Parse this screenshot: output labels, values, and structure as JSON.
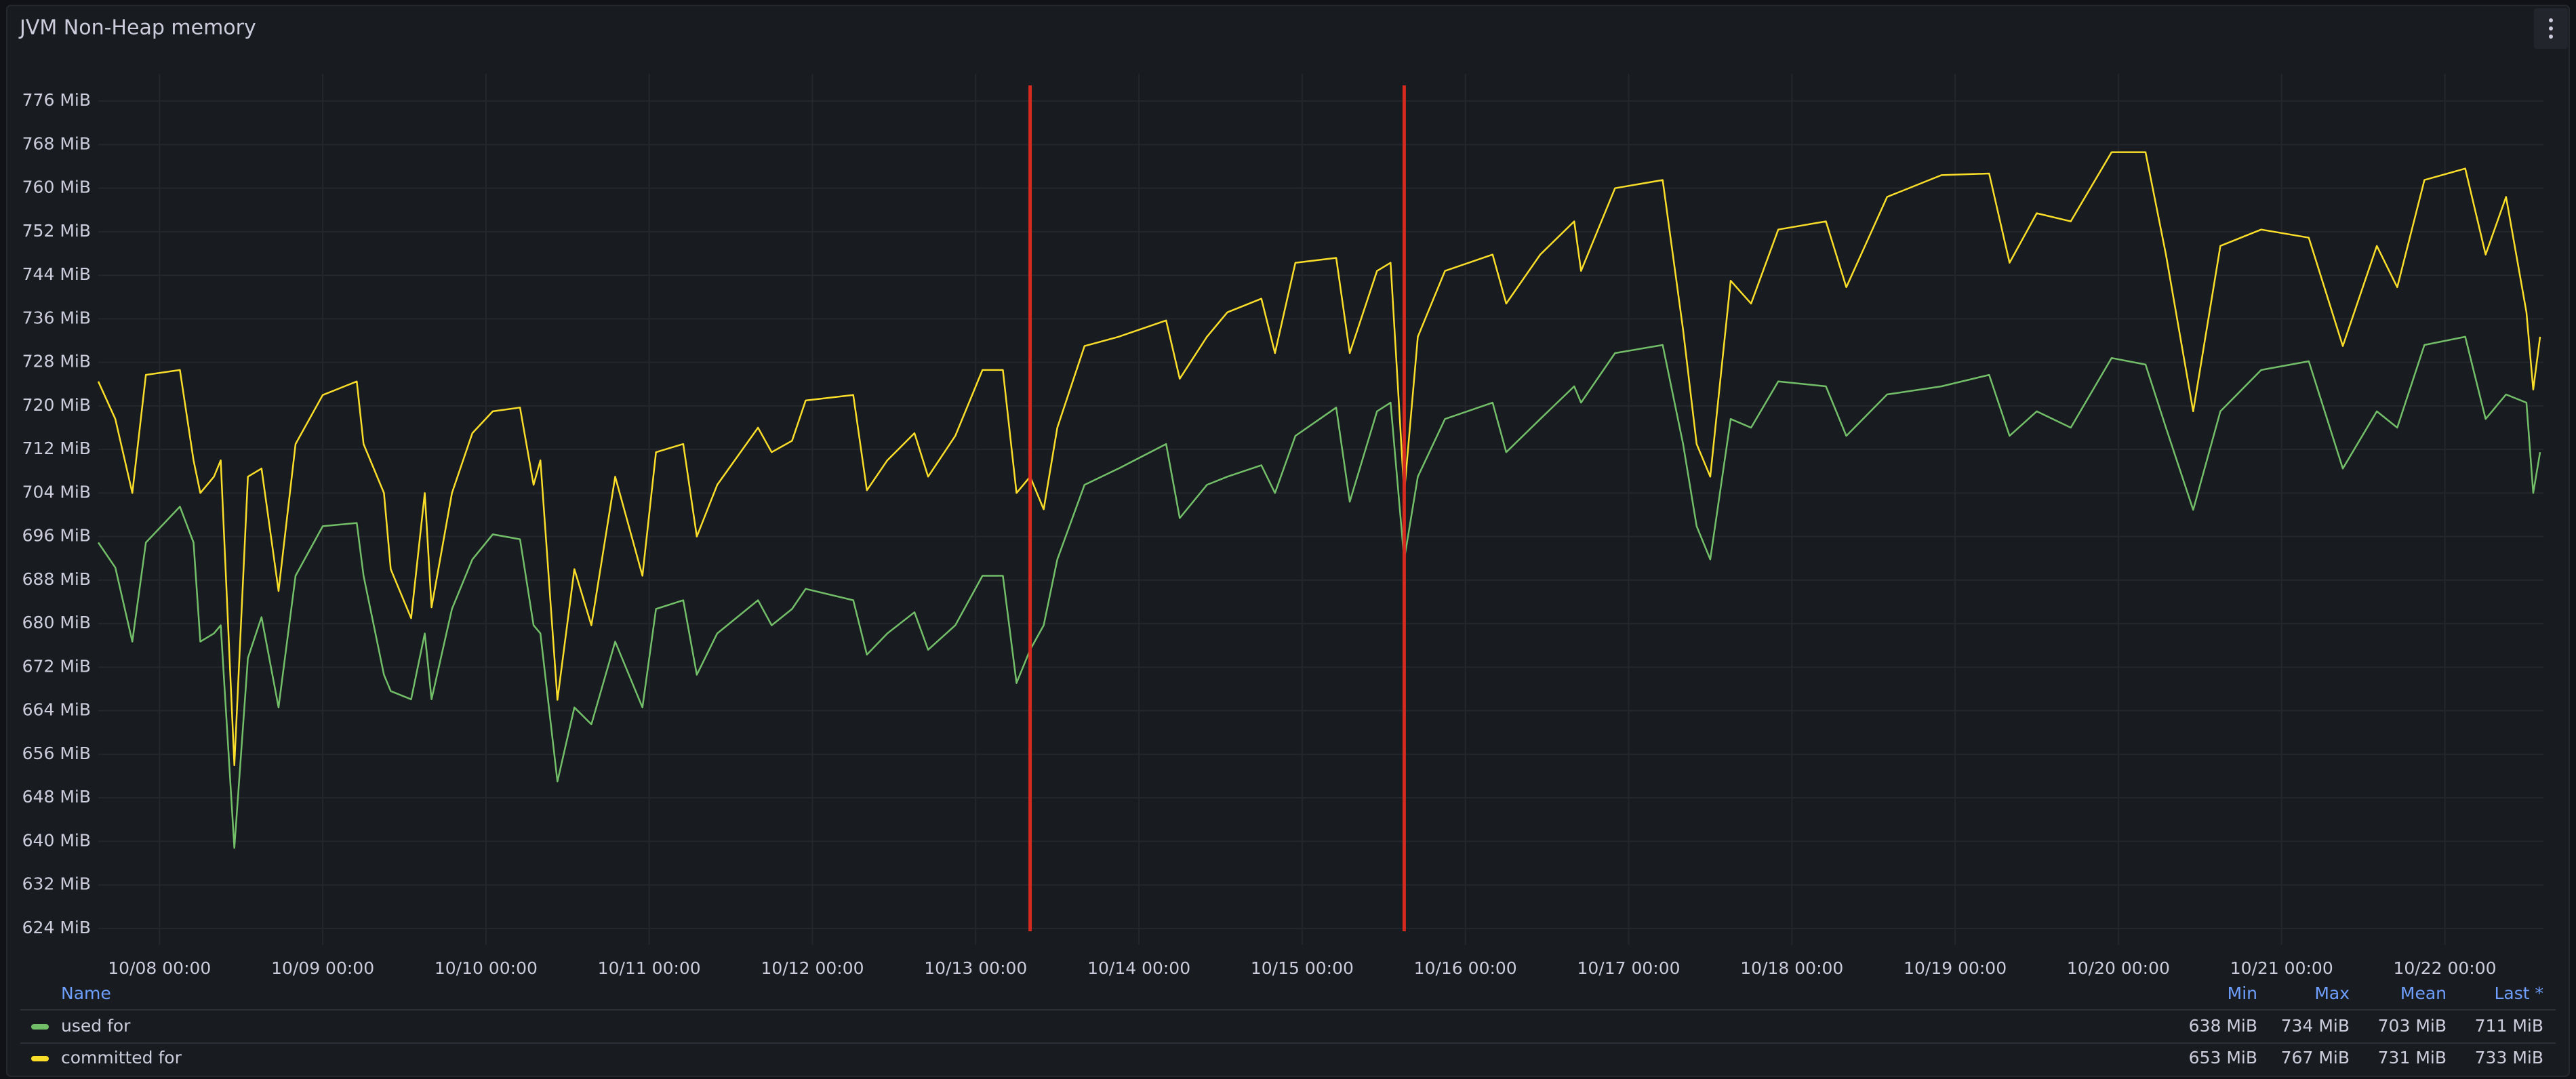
{
  "chart_data": {
    "type": "line",
    "title": "JVM Non-Heap memory",
    "x": [
      "10/07 15:00",
      "10/07 17:30",
      "10/07 20:00",
      "10/07 22:00",
      "10/08 03:00",
      "10/08 05:00",
      "10/08 06:00",
      "10/08 08:00",
      "10/08 09:00",
      "10/08 11:00",
      "10/08 13:00",
      "10/08 15:00",
      "10/08 17:30",
      "10/08 20:00",
      "10/09 00:00",
      "10/09 05:00",
      "10/09 06:00",
      "10/09 09:00",
      "10/09 10:00",
      "10/09 13:00",
      "10/09 15:00",
      "10/09 16:00",
      "10/09 19:00",
      "10/09 22:00",
      "10/10 01:00",
      "10/10 05:00",
      "10/10 07:00",
      "10/10 08:00",
      "10/10 10:30",
      "10/10 13:00",
      "10/10 15:30",
      "10/10 19:00",
      "10/10 23:00",
      "10/11 01:00",
      "10/11 05:00",
      "10/11 07:00",
      "10/11 10:00",
      "10/11 16:00",
      "10/11 18:00",
      "10/11 21:00",
      "10/11 23:00",
      "10/12 06:00",
      "10/12 08:00",
      "10/12 11:00",
      "10/12 15:00",
      "10/12 17:00",
      "10/12 21:00",
      "10/13 01:00",
      "10/13 04:00",
      "10/13 06:00",
      "10/13 08:00",
      "10/13 10:00",
      "10/13 12:00",
      "10/13 16:00",
      "10/13 21:00",
      "10/14 04:00",
      "10/14 06:00",
      "10/14 10:00",
      "10/14 13:00",
      "10/14 18:00",
      "10/14 20:00",
      "10/14 23:00",
      "10/15 05:00",
      "10/15 07:00",
      "10/15 11:00",
      "10/15 13:00",
      "10/15 15:00",
      "10/15 17:00",
      "10/15 21:00",
      "10/16 04:00",
      "10/16 06:00",
      "10/16 11:00",
      "10/16 16:00",
      "10/16 17:00",
      "10/16 22:00",
      "10/17 05:00",
      "10/17 08:00",
      "10/17 10:00",
      "10/17 12:00",
      "10/17 15:00",
      "10/17 18:00",
      "10/17 22:00",
      "10/18 05:00",
      "10/18 08:00",
      "10/18 14:00",
      "10/18 22:00",
      "10/19 05:00",
      "10/19 08:00",
      "10/19 12:00",
      "10/19 17:00",
      "10/19 23:00",
      "10/20 04:00",
      "10/20 07:00",
      "10/20 11:00",
      "10/20 15:00",
      "10/20 21:00",
      "10/21 04:00",
      "10/21 09:00",
      "10/21 14:00",
      "10/21 17:00",
      "10/21 21:00",
      "10/22 03:00",
      "10/22 06:00",
      "10/22 09:00",
      "10/22 12:00",
      "10/22 13:00",
      "10/22 14:00"
    ],
    "series": [
      {
        "name": "used for",
        "color": "#73bf69",
        "stats": [
          "638 MiB",
          "734 MiB",
          "703 MiB",
          "711 MiB"
        ],
        "values": [
          694.9,
          690.3,
          676.7,
          694.9,
          701.5,
          694.9,
          676.7,
          678.2,
          679.7,
          638.8,
          673.7,
          681.2,
          664.6,
          688.8,
          697.9,
          698.5,
          688.8,
          670.6,
          667.6,
          666.1,
          678.2,
          666.1,
          682.7,
          691.8,
          696.4,
          695.5,
          679.7,
          678.2,
          651,
          664.6,
          661.5,
          676.7,
          664.6,
          682.7,
          684.3,
          670.6,
          678.2,
          684.3,
          679.7,
          682.7,
          686.4,
          684.3,
          674.3,
          678.2,
          682.1,
          675.2,
          679.7,
          688.8,
          688.8,
          669.1,
          675.2,
          679.7,
          691.8,
          705.5,
          708.5,
          713,
          699.4,
          705.5,
          707,
          709.1,
          704,
          714.5,
          719.7,
          702.4,
          719,
          720.6,
          691.8,
          707,
          717.6,
          720.6,
          711.5,
          717.6,
          723.6,
          720.6,
          729.7,
          731.2,
          713,
          697.9,
          691.8,
          717.6,
          716,
          724.5,
          723.6,
          714.5,
          722.1,
          723.6,
          725.7,
          714.5,
          719,
          716,
          728.8,
          727.6,
          716,
          700.9,
          719,
          726.6,
          728.2,
          708.5,
          719,
          716,
          731.2,
          732.7,
          717.6,
          722.1,
          720.6,
          704,
          711.5
        ]
      },
      {
        "name": "committed for",
        "color": "#fade2a",
        "stats": [
          "653 MiB",
          "767 MiB",
          "731 MiB",
          "733 MiB"
        ],
        "values": [
          724.5,
          717.6,
          704,
          725.7,
          726.6,
          710,
          704,
          707,
          710,
          654,
          707,
          708.5,
          686,
          713,
          722,
          724.5,
          713,
          704,
          690,
          681,
          704,
          683,
          704,
          715,
          719,
          719.7,
          705.5,
          710,
          666,
          690,
          679.7,
          707,
          688.8,
          711.5,
          713,
          696,
          705.5,
          716,
          711.5,
          713.6,
          721,
          722,
          704.5,
          710,
          715,
          707,
          714.5,
          726.6,
          726.6,
          704,
          707,
          701,
          716,
          731,
          732.7,
          735.7,
          725,
          732.7,
          737.2,
          739.7,
          729.7,
          746.3,
          747.2,
          729.7,
          744.8,
          746.3,
          704,
          732.7,
          744.8,
          747.8,
          738.8,
          747.8,
          753.9,
          744.8,
          760,
          761.5,
          734,
          713,
          707,
          743,
          738.8,
          752.4,
          753.9,
          741.8,
          758.4,
          762.4,
          762.7,
          746.3,
          755.4,
          753.9,
          766.6,
          766.6,
          747.8,
          719,
          749.4,
          752.4,
          750.9,
          731,
          749.4,
          741.8,
          761.5,
          763.6,
          747.8,
          758.4,
          737.2,
          723,
          732.7
        ]
      }
    ],
    "xlim": [
      "10/07 15:00",
      "10/22 14:30"
    ],
    "xticks": [
      "10/08 00:00",
      "10/09 00:00",
      "10/10 00:00",
      "10/11 00:00",
      "10/12 00:00",
      "10/13 00:00",
      "10/14 00:00",
      "10/15 00:00",
      "10/16 00:00",
      "10/17 00:00",
      "10/18 00:00",
      "10/19 00:00",
      "10/20 00:00",
      "10/21 00:00",
      "10/22 00:00"
    ],
    "ylim": [
      621,
      781
    ],
    "yticks": [
      {
        "value": 624,
        "label": "624 MiB"
      },
      {
        "value": 632,
        "label": "632 MiB"
      },
      {
        "value": 640,
        "label": "640 MiB"
      },
      {
        "value": 648,
        "label": "648 MiB"
      },
      {
        "value": 656,
        "label": "656 MiB"
      },
      {
        "value": 664,
        "label": "664 MiB"
      },
      {
        "value": 672,
        "label": "672 MiB"
      },
      {
        "value": 680,
        "label": "680 MiB"
      },
      {
        "value": 688,
        "label": "688 MiB"
      },
      {
        "value": 696,
        "label": "696 MiB"
      },
      {
        "value": 704,
        "label": "704 MiB"
      },
      {
        "value": 712,
        "label": "712 MiB"
      },
      {
        "value": 720,
        "label": "720 MiB"
      },
      {
        "value": 728,
        "label": "728 MiB"
      },
      {
        "value": 736,
        "label": "736 MiB"
      },
      {
        "value": 744,
        "label": "744 MiB"
      },
      {
        "value": 752,
        "label": "752 MiB"
      },
      {
        "value": 760,
        "label": "760 MiB"
      },
      {
        "value": 768,
        "label": "768 MiB"
      },
      {
        "value": 776,
        "label": "776 MiB"
      }
    ],
    "grid": true,
    "annotations": [
      {
        "x": "10/13 08:00",
        "color": "#d42a1f"
      },
      {
        "x": "10/15 15:00",
        "color": "#d42a1f"
      }
    ],
    "legend_columns": [
      "Name",
      "Min",
      "Max",
      "Mean",
      "Last *"
    ]
  }
}
